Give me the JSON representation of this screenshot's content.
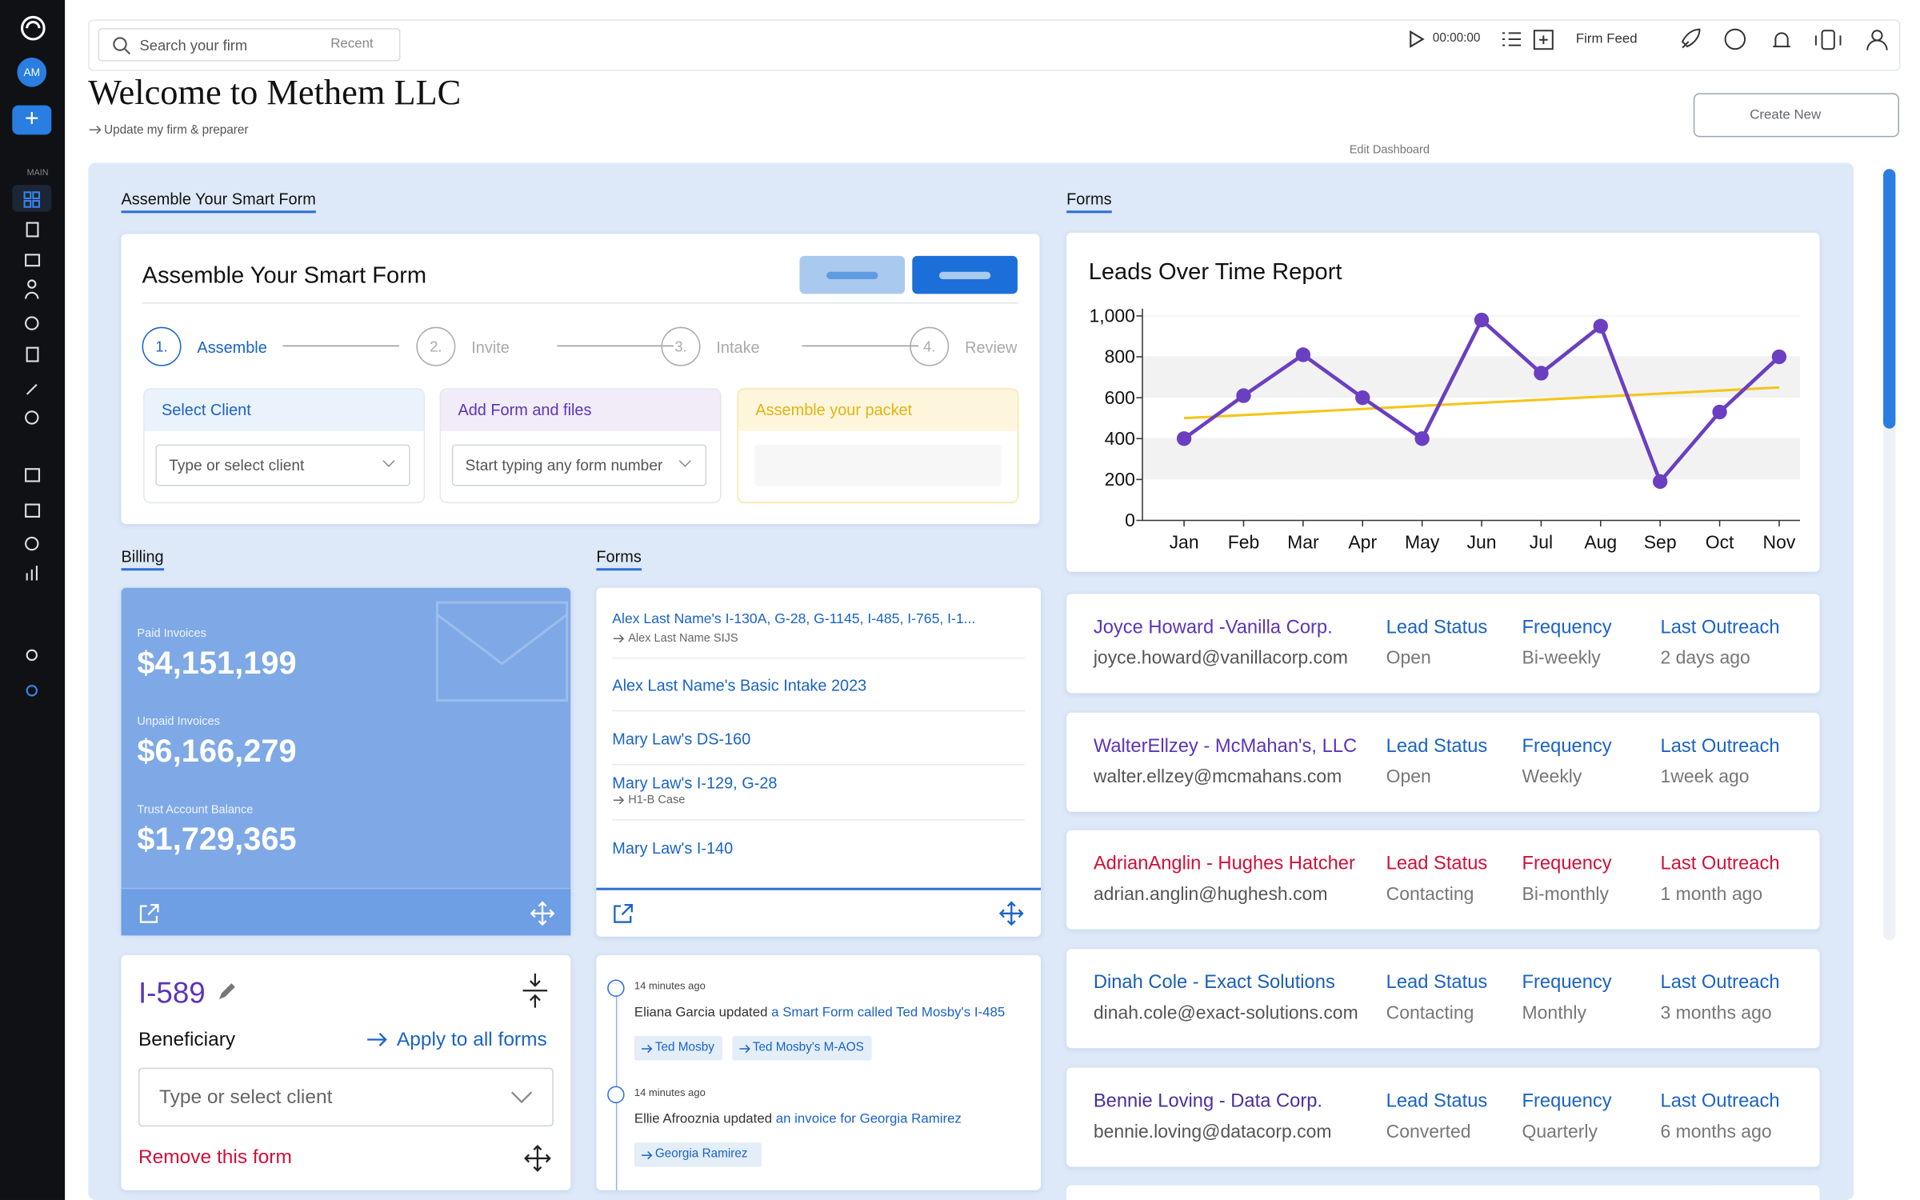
{
  "header": {
    "search_placeholder": "Search your firm",
    "recent": "Recent",
    "timer": "00:00:00",
    "firm_feed": "Firm Feed",
    "title": "Welcome to Methem LLC",
    "subtitle": "Update my firm & preparer",
    "create_new": "Create New",
    "edit_dashboard": "Edit Dashboard"
  },
  "sidebar": {
    "avatar": "AM",
    "section": "MAIN"
  },
  "smart_form": {
    "tab": "Assemble Your Smart Form",
    "title": "Assemble Your Smart Form",
    "steps": [
      {
        "number": "1.",
        "label": "Assemble"
      },
      {
        "number": "2.",
        "label": "Invite"
      },
      {
        "number": "3.",
        "label": "Intake"
      },
      {
        "number": "4.",
        "label": "Review"
      }
    ],
    "panels": [
      {
        "title": "Select Client",
        "placeholder": "Type or select client"
      },
      {
        "title": "Add Form and files",
        "placeholder": "Start typing any form number"
      },
      {
        "title": "Assemble your packet"
      }
    ]
  },
  "billing": {
    "tab": "Billing",
    "items": [
      {
        "label": "Paid Invoices",
        "value": "$4,151,199"
      },
      {
        "label": "Unpaid Invoices",
        "value": "$6,166,279"
      },
      {
        "label": "Trust Account Balance",
        "value": "$1,729,365"
      }
    ]
  },
  "forms": {
    "tab": "Forms",
    "items": [
      {
        "title": "Alex Last Name's I-130A, G-28, G-1145, I-485, I-765, I-1...",
        "subtitle": "Alex Last Name SIJS"
      },
      {
        "title": "Alex Last Name's Basic Intake 2023"
      },
      {
        "title": "Mary Law's DS-160"
      },
      {
        "title": "Mary Law's I-129, G-28",
        "subtitle": "H1-B Case"
      },
      {
        "title": "Mary Law's I-140"
      }
    ]
  },
  "form_card": {
    "title": "I-589",
    "label": "Beneficiary",
    "apply": "Apply to all forms",
    "placeholder": "Type or select client",
    "remove": "Remove this form"
  },
  "activity": [
    {
      "time": "14 minutes ago",
      "actor": "Eliana Garcia updated",
      "link": "a Smart Form called Ted Mosby's I-485",
      "tags": [
        "Ted Mosby",
        "Ted Mosby's M-AOS"
      ]
    },
    {
      "time": "14 minutes ago",
      "actor": "Ellie Afrooznia updated",
      "link": "an invoice for Georgia Ramirez",
      "tags": [
        "Georgia Ramirez"
      ]
    }
  ],
  "leads_tab": "Forms",
  "leads_chart": {
    "type": "line",
    "title": "Leads Over Time Report",
    "categories": [
      "Jan",
      "Feb",
      "Mar",
      "Apr",
      "May",
      "Jun",
      "Jul",
      "Aug",
      "Sep",
      "Oct",
      "Nov"
    ],
    "series": [
      {
        "color": "#6a3fc1",
        "values": [
          400,
          610,
          810,
          600,
          400,
          980,
          720,
          950,
          190,
          530,
          800
        ]
      }
    ],
    "trend": {
      "color": "#f5c518",
      "values": [
        500,
        650
      ]
    },
    "ylim": [
      0,
      1000
    ],
    "yticks": [
      0,
      200,
      400,
      600,
      800,
      {
        "value": 1000,
        "label": "1,000"
      }
    ],
    "grid": true
  },
  "leads": [
    {
      "name": "Joyce Howard -Vanilla Corp.",
      "email": "joyce.howard@vanillacorp.com",
      "status_label": "Lead Status",
      "status": "Open",
      "frequency_label": "Frequency",
      "frequency": "Bi-weekly",
      "outreach_label": "Last Outreach",
      "outreach": "2 days ago",
      "color": "#5b35b8"
    },
    {
      "name": "WalterEllzey - McMahan's, LLC",
      "email": "walter.ellzey@mcmahans.com",
      "status_label": "Lead Status",
      "status": "Open",
      "frequency_label": "Frequency",
      "frequency": "Weekly",
      "outreach_label": "Last Outreach",
      "outreach": "1week ago",
      "color": "#5b35b8"
    },
    {
      "name": "AdrianAnglin - Hughes Hatcher",
      "email": "adrian.anglin@hughesh.com",
      "status_label": "Lead Status",
      "status": "Contacting",
      "frequency_label": "Frequency",
      "frequency": "Bi-monthly",
      "outreach_label": "Last Outreach",
      "outreach": "1 month ago",
      "color": "#d0103a"
    },
    {
      "name": "Dinah Cole - Exact Solutions",
      "email": "dinah.cole@exact-solutions.com",
      "status_label": "Lead Status",
      "status": "Contacting",
      "frequency_label": "Frequency",
      "frequency": "Monthly",
      "outreach_label": "Last Outreach",
      "outreach": "3 months ago",
      "color": "#1a5fb4"
    },
    {
      "name": "Bennie Loving - Data Corp.",
      "email": "bennie.loving@datacorp.com",
      "status_label": "Lead Status",
      "status": "Converted",
      "frequency_label": "Frequency",
      "frequency": "Quarterly",
      "outreach_label": "Last Outreach",
      "outreach": "6 months ago",
      "color": "#4a2f9e"
    }
  ]
}
